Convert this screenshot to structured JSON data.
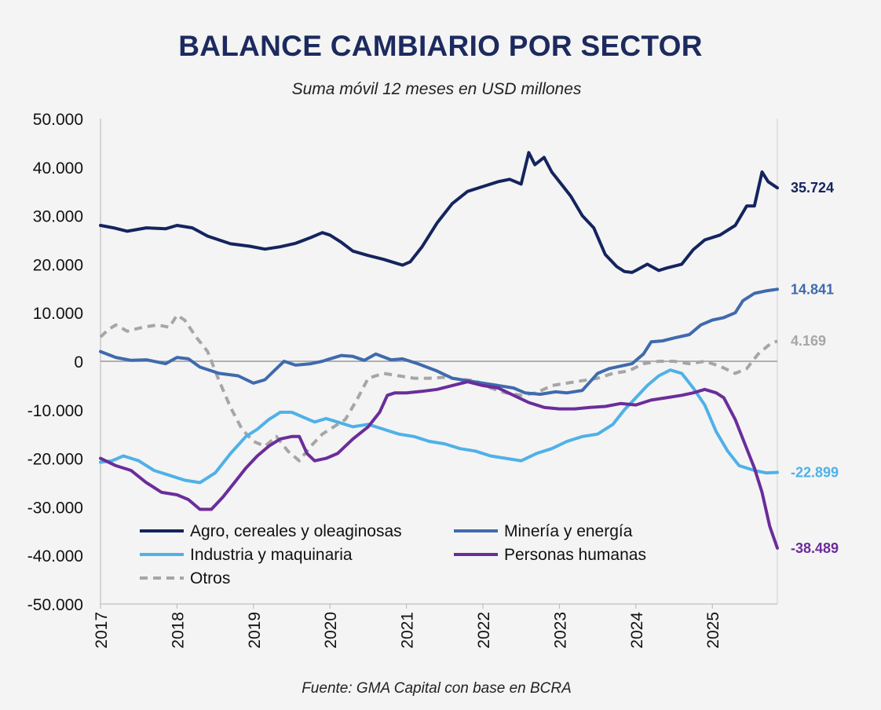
{
  "title": "BALANCE CAMBIARIO POR SECTOR",
  "subtitle": "Suma móvil 12 meses en USD millones",
  "source": "Fuente: GMA Capital con base en BCRA",
  "chart_data": {
    "type": "line",
    "title": "BALANCE CAMBIARIO POR SECTOR",
    "subtitle": "Suma móvil 12 meses en USD millones",
    "xlabel": "",
    "ylabel": "",
    "xlim": [
      2017.0,
      2025.85
    ],
    "ylim": [
      -50000,
      50000
    ],
    "y_ticks": [
      50000,
      40000,
      30000,
      20000,
      10000,
      0,
      -10000,
      -20000,
      -30000,
      -40000,
      -50000
    ],
    "y_tick_labels": [
      "50.000",
      "40.000",
      "30.000",
      "20.000",
      "10.000",
      "0",
      "-10.000",
      "-20.000",
      "-30.000",
      "-40.000",
      "-50.000"
    ],
    "x_ticks": [
      2017,
      2018,
      2019,
      2020,
      2021,
      2022,
      2023,
      2024,
      2025
    ],
    "x_tick_labels": [
      "2017",
      "2018",
      "2019",
      "2020",
      "2021",
      "2022",
      "2023",
      "2024",
      "2025"
    ],
    "legend_position": "bottom-left",
    "grid": false,
    "series": [
      {
        "name": "Agro, cereales y oleaginosas",
        "color": "#14245e",
        "dash": false,
        "end_label": "35.724",
        "x": [
          2017.0,
          2017.17,
          2017.35,
          2017.6,
          2017.85,
          2018.0,
          2018.2,
          2018.4,
          2018.7,
          2018.95,
          2019.15,
          2019.35,
          2019.55,
          2019.75,
          2019.9,
          2020.0,
          2020.15,
          2020.3,
          2020.5,
          2020.7,
          2020.95,
          2021.05,
          2021.2,
          2021.4,
          2021.6,
          2021.8,
          2022.0,
          2022.2,
          2022.35,
          2022.5,
          2022.6,
          2022.68,
          2022.8,
          2022.9,
          2023.0,
          2023.15,
          2023.3,
          2023.45,
          2023.6,
          2023.75,
          2023.85,
          2023.95,
          2024.0,
          2024.15,
          2024.3,
          2024.4,
          2024.6,
          2024.75,
          2024.9,
          2025.1,
          2025.3,
          2025.45,
          2025.55,
          2025.65,
          2025.73,
          2025.85
        ],
        "y": [
          28000,
          27500,
          26800,
          27500,
          27300,
          28000,
          27500,
          25800,
          24200,
          23700,
          23100,
          23600,
          24300,
          25500,
          26500,
          26000,
          24500,
          22700,
          21800,
          21000,
          19800,
          20500,
          23500,
          28500,
          32500,
          35000,
          36000,
          37000,
          37500,
          36500,
          43000,
          40500,
          42000,
          39000,
          37000,
          34000,
          30000,
          27500,
          22000,
          19500,
          18500,
          18300,
          18700,
          20000,
          18700,
          19200,
          20000,
          23000,
          25000,
          26000,
          28000,
          32000,
          32000,
          39000,
          37000,
          35724
        ]
      },
      {
        "name": "Minería y energía",
        "color": "#3f6aad",
        "dash": false,
        "end_label": "14.841",
        "x": [
          2017.0,
          2017.2,
          2017.4,
          2017.6,
          2017.85,
          2018.0,
          2018.15,
          2018.3,
          2018.55,
          2018.8,
          2019.0,
          2019.15,
          2019.3,
          2019.4,
          2019.55,
          2019.75,
          2019.9,
          2020.0,
          2020.15,
          2020.3,
          2020.45,
          2020.6,
          2020.8,
          2020.95,
          2021.15,
          2021.4,
          2021.6,
          2021.8,
          2022.0,
          2022.2,
          2022.4,
          2022.55,
          2022.75,
          2022.95,
          2023.1,
          2023.3,
          2023.5,
          2023.65,
          2023.8,
          2023.95,
          2024.1,
          2024.2,
          2024.35,
          2024.5,
          2024.7,
          2024.85,
          2025.0,
          2025.15,
          2025.3,
          2025.4,
          2025.55,
          2025.7,
          2025.85
        ],
        "y": [
          2000,
          800,
          200,
          300,
          -500,
          800,
          500,
          -1200,
          -2500,
          -3000,
          -4500,
          -3800,
          -1500,
          0,
          -800,
          -500,
          0,
          500,
          1200,
          1000,
          200,
          1500,
          300,
          500,
          -500,
          -2000,
          -3500,
          -4000,
          -4500,
          -5000,
          -5500,
          -6500,
          -6800,
          -6300,
          -6500,
          -6000,
          -2500,
          -1500,
          -1000,
          -500,
          1500,
          4000,
          4200,
          4800,
          5500,
          7500,
          8500,
          9000,
          10000,
          12500,
          14000,
          14500,
          14841
        ]
      },
      {
        "name": "Industria y maquinaria",
        "color": "#4fb1e8",
        "dash": false,
        "end_label": "-22.899",
        "x": [
          2017.0,
          2017.15,
          2017.3,
          2017.5,
          2017.7,
          2017.9,
          2018.1,
          2018.3,
          2018.5,
          2018.7,
          2018.9,
          2019.05,
          2019.2,
          2019.35,
          2019.5,
          2019.65,
          2019.8,
          2019.95,
          2020.1,
          2020.3,
          2020.5,
          2020.7,
          2020.9,
          2021.1,
          2021.3,
          2021.5,
          2021.7,
          2021.9,
          2022.1,
          2022.3,
          2022.5,
          2022.7,
          2022.9,
          2023.1,
          2023.3,
          2023.5,
          2023.7,
          2023.85,
          2024.0,
          2024.15,
          2024.3,
          2024.45,
          2024.6,
          2024.75,
          2024.9,
          2025.05,
          2025.2,
          2025.35,
          2025.55,
          2025.7,
          2025.85
        ],
        "y": [
          -20800,
          -20500,
          -19500,
          -20500,
          -22500,
          -23500,
          -24500,
          -25000,
          -23000,
          -19000,
          -15500,
          -14000,
          -12000,
          -10500,
          -10500,
          -11500,
          -12500,
          -11800,
          -12500,
          -13500,
          -13000,
          -14000,
          -15000,
          -15500,
          -16500,
          -17000,
          -18000,
          -18500,
          -19500,
          -20000,
          -20500,
          -19000,
          -18000,
          -16500,
          -15500,
          -15000,
          -13000,
          -10000,
          -7500,
          -5000,
          -3000,
          -1800,
          -2500,
          -5500,
          -9000,
          -14500,
          -18500,
          -21500,
          -22500,
          -23000,
          -22899
        ]
      },
      {
        "name": "Personas humanas",
        "color": "#6b2d9a",
        "dash": false,
        "end_label": "-38.489",
        "x": [
          2017.0,
          2017.2,
          2017.4,
          2017.6,
          2017.8,
          2018.0,
          2018.15,
          2018.3,
          2018.45,
          2018.6,
          2018.75,
          2018.9,
          2019.05,
          2019.2,
          2019.35,
          2019.5,
          2019.6,
          2019.7,
          2019.8,
          2019.95,
          2020.1,
          2020.3,
          2020.5,
          2020.65,
          2020.75,
          2020.85,
          2021.0,
          2021.2,
          2021.4,
          2021.6,
          2021.8,
          2022.0,
          2022.2,
          2022.4,
          2022.6,
          2022.8,
          2023.0,
          2023.2,
          2023.4,
          2023.6,
          2023.8,
          2024.0,
          2024.2,
          2024.4,
          2024.6,
          2024.75,
          2024.9,
          2025.05,
          2025.15,
          2025.3,
          2025.45,
          2025.55,
          2025.65,
          2025.75,
          2025.85
        ],
        "y": [
          -20000,
          -21500,
          -22500,
          -25000,
          -27000,
          -27500,
          -28500,
          -30500,
          -30500,
          -28000,
          -25000,
          -22000,
          -19500,
          -17500,
          -16000,
          -15500,
          -15500,
          -19000,
          -20500,
          -20000,
          -19000,
          -16000,
          -13500,
          -10500,
          -7000,
          -6500,
          -6500,
          -6200,
          -5800,
          -5000,
          -4200,
          -5000,
          -5500,
          -7000,
          -8500,
          -9500,
          -9800,
          -9800,
          -9500,
          -9300,
          -8700,
          -9000,
          -8000,
          -7500,
          -7000,
          -6500,
          -5800,
          -6500,
          -7500,
          -12000,
          -18000,
          -22000,
          -27000,
          -34000,
          -38489
        ]
      },
      {
        "name": "Otros",
        "color": "#a6a6a6",
        "dash": true,
        "end_label": "4.169",
        "x": [
          2017.0,
          2017.1,
          2017.2,
          2017.35,
          2017.55,
          2017.75,
          2017.9,
          2018.0,
          2018.1,
          2018.25,
          2018.4,
          2018.55,
          2018.7,
          2018.85,
          2019.0,
          2019.15,
          2019.3,
          2019.45,
          2019.6,
          2019.75,
          2019.9,
          2020.05,
          2020.2,
          2020.35,
          2020.5,
          2020.7,
          2020.9,
          2021.1,
          2021.3,
          2021.5,
          2021.7,
          2021.9,
          2022.1,
          2022.3,
          2022.5,
          2022.7,
          2022.9,
          2023.1,
          2023.3,
          2023.5,
          2023.7,
          2023.9,
          2024.1,
          2024.3,
          2024.5,
          2024.7,
          2024.9,
          2025.1,
          2025.3,
          2025.45,
          2025.6,
          2025.75,
          2025.85
        ],
        "y": [
          5000,
          6500,
          7500,
          6200,
          7000,
          7500,
          7000,
          9500,
          8500,
          5000,
          2000,
          -4000,
          -9500,
          -14000,
          -16500,
          -17500,
          -15500,
          -18500,
          -20500,
          -17500,
          -15000,
          -13500,
          -12000,
          -8000,
          -3500,
          -2500,
          -3000,
          -3500,
          -3500,
          -3300,
          -3700,
          -4000,
          -5500,
          -6500,
          -7000,
          -6500,
          -5000,
          -4500,
          -4000,
          -3500,
          -2500,
          -2000,
          -500,
          0,
          0,
          -500,
          0,
          -1000,
          -2500,
          -1500,
          1500,
          3500,
          4169
        ]
      }
    ]
  }
}
